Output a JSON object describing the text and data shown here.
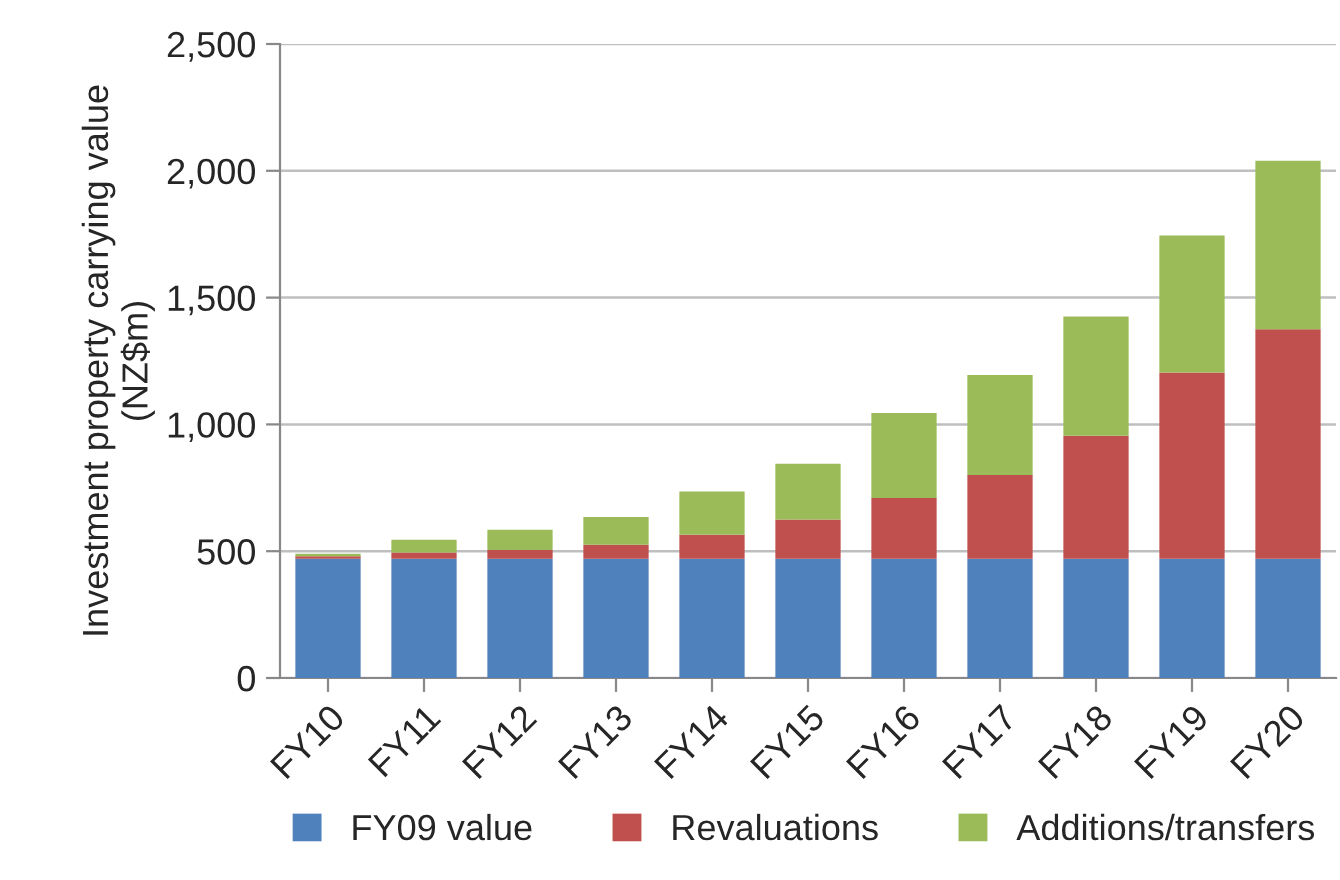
{
  "chart_data": {
    "type": "bar",
    "stacked": true,
    "ylabel": "Investment property carrying value\n(NZ$m)",
    "categories": [
      "FY10",
      "FY11",
      "FY12",
      "FY13",
      "FY14",
      "FY15",
      "FY16",
      "FY17",
      "FY18",
      "FY19",
      "FY20"
    ],
    "series": [
      {
        "name": "FY09 value",
        "color": "#4f81bd",
        "values": [
          470,
          470,
          470,
          470,
          470,
          470,
          470,
          470,
          470,
          470,
          470
        ]
      },
      {
        "name": "Revaluations",
        "color": "#c0504d",
        "values": [
          10,
          25,
          35,
          55,
          95,
          155,
          240,
          330,
          485,
          735,
          905
        ]
      },
      {
        "name": "Additions/transfers",
        "color": "#9bbb59",
        "values": [
          10,
          50,
          80,
          110,
          170,
          220,
          335,
          395,
          470,
          540,
          665
        ]
      }
    ],
    "ylim": [
      0,
      2500
    ],
    "yticks": [
      {
        "value": 0,
        "label": "0"
      },
      {
        "value": 500,
        "label": "500"
      },
      {
        "value": 1000,
        "label": "1,000"
      },
      {
        "value": 1500,
        "label": "1,500"
      },
      {
        "value": 2000,
        "label": "2,000"
      },
      {
        "value": 2500,
        "label": "2,500"
      }
    ],
    "grid": "y",
    "legend": "bottom"
  }
}
